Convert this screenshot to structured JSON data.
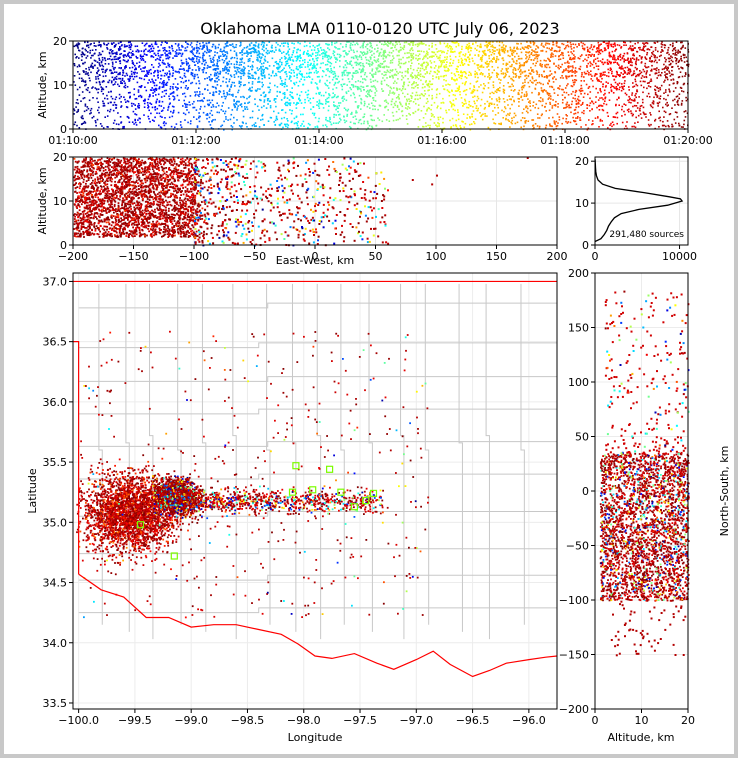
{
  "colors": {
    "state_border": "#ff0000",
    "county_lines": "#c8c8c8",
    "profile_line": "#000000",
    "marker_green": "#7cfc00",
    "colormap": "jet"
  },
  "chart_data": [
    {
      "panel": "time-height",
      "type": "scatter",
      "title": "Oklahoma LMA 0110-0120 UTC July 06, 2023",
      "xlabel": "",
      "ylabel": "Altitude, km",
      "xlim": [
        "01:10:00",
        "01:20:00"
      ],
      "ylim": [
        0,
        20
      ],
      "xticks": [
        "01:10:00",
        "01:12:00",
        "01:14:00",
        "01:16:00",
        "01:18:00",
        "01:20:00"
      ],
      "yticks": [
        "0",
        "10",
        "20"
      ],
      "color_encoding": "time",
      "altitude_band_km": [
        0,
        20
      ]
    },
    {
      "panel": "east-west-altitude",
      "type": "scatter",
      "xlabel": "East-West, km",
      "ylabel": "Altitude, km",
      "xlim": [
        -200,
        200
      ],
      "ylim": [
        0,
        20
      ],
      "xticks": [
        "−200",
        "−150",
        "−100",
        "−50",
        "0",
        "50",
        "100",
        "150",
        "200"
      ],
      "yticks": [
        "0",
        "10",
        "20"
      ],
      "grid": true,
      "dense_core_x_km": [
        -200,
        -100
      ],
      "sparse_tail_x_km": [
        -100,
        60
      ],
      "altitude_core_km": [
        2,
        20
      ]
    },
    {
      "panel": "altitude-histogram",
      "type": "line",
      "xlabel": "",
      "ylabel": "",
      "xlim": [
        0,
        11000
      ],
      "ylim": [
        0,
        21
      ],
      "xticks": [
        "0",
        "10000"
      ],
      "yticks": [
        "0",
        "10",
        "20"
      ],
      "annotation": "291,480 sources",
      "profile": {
        "altitude_km": [
          0.8,
          1.5,
          2.5,
          3.5,
          4.5,
          5.5,
          6.5,
          7.5,
          8.5,
          9.5,
          10.5,
          11.0,
          11.5,
          12.5,
          13.5,
          14.5,
          15.5,
          16.5,
          17.5,
          18.5,
          19.5,
          20.5
        ],
        "count": [
          0,
          700,
          1100,
          1400,
          1600,
          1900,
          2300,
          3100,
          5200,
          8600,
          10300,
          10100,
          8800,
          5800,
          2400,
          900,
          350,
          180,
          100,
          60,
          30,
          10
        ]
      }
    },
    {
      "panel": "plan-view",
      "type": "scatter",
      "xlabel": "Longitude",
      "ylabel": "Latitude",
      "xlim": [
        -100.05,
        -95.75
      ],
      "ylim": [
        33.45,
        37.07
      ],
      "xticks": [
        "−100.0",
        "−99.5",
        "−99.0",
        "−98.5",
        "−98.0",
        "−97.5",
        "−97.0",
        "−96.5",
        "−96.0"
      ],
      "yticks": [
        "33.5",
        "34.0",
        "34.5",
        "35.0",
        "35.5",
        "36.0",
        "36.5",
        "37.0"
      ],
      "grid": true,
      "stations_lon": [
        -98.07,
        -97.77,
        -98.1,
        -97.92,
        -97.67,
        -97.55,
        -97.45,
        -97.38,
        -99.45,
        -99.15
      ],
      "stations_lat": [
        35.47,
        35.44,
        35.25,
        35.27,
        35.25,
        35.13,
        35.18,
        35.24,
        34.98,
        34.72
      ]
    },
    {
      "panel": "altitude-north-south",
      "type": "scatter",
      "xlabel": "Altitude, km",
      "ylabel": "North-South, km",
      "xlim": [
        0,
        20
      ],
      "ylim": [
        -200,
        200
      ],
      "xticks": [
        "0",
        "10",
        "20"
      ],
      "yticks": [
        "200",
        "150",
        "100",
        "50",
        "0",
        "−50",
        "−100",
        "−150",
        "−200"
      ],
      "grid": true,
      "dense_core_ns_km": [
        -100,
        35
      ]
    }
  ]
}
